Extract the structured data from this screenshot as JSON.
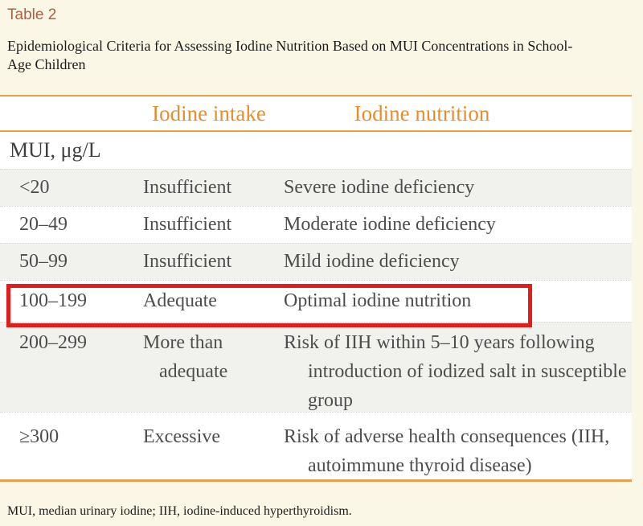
{
  "title": "Table 2",
  "caption": {
    "line1": "Epidemiological Criteria for Assessing Iodine Nutrition Based on MUI Concentrations in School-",
    "line2": "Age Children"
  },
  "table": {
    "header": {
      "intake": "Iodine intake",
      "nutrition": "Iodine nutrition"
    },
    "unit_label": "MUI, μg/L",
    "rows": [
      {
        "mui": "<20",
        "intake": [
          "Insufficient"
        ],
        "nutrition": [
          "Severe iodine deficiency"
        ]
      },
      {
        "mui": "20–49",
        "intake": [
          "Insufficient"
        ],
        "nutrition": [
          "Moderate iodine deficiency"
        ]
      },
      {
        "mui": "50–99",
        "intake": [
          "Insufficient"
        ],
        "nutrition": [
          "Mild iodine deficiency"
        ]
      },
      {
        "mui": "100–199",
        "intake": [
          "Adequate"
        ],
        "nutrition": [
          "Optimal iodine nutrition"
        ],
        "highlighted": true
      },
      {
        "mui": "200–299",
        "intake": [
          "More than adequate"
        ],
        "nutrition": [
          "Risk of IIH within 5–10 years following introduction of iodized salt in susceptible group"
        ]
      },
      {
        "mui": "≥300",
        "intake": [
          "Excessive"
        ],
        "nutrition": [
          "Risk of adverse health consequences (IIH, autoimmune thyroid disease)"
        ]
      }
    ]
  },
  "footnote": "MUI, median urinary iodine; IIH, iodine-induced hyperthyroidism.",
  "colors": {
    "page_background": "#fbf7e6",
    "table_border_orange": "#e8a04b",
    "header_text_orange": "#e88d2f",
    "title_terracotta": "#ab6142",
    "zebra_gray": "#f1f1ee",
    "body_text_gray": "#4d4d4d",
    "highlight_red": "#e51c1c"
  }
}
